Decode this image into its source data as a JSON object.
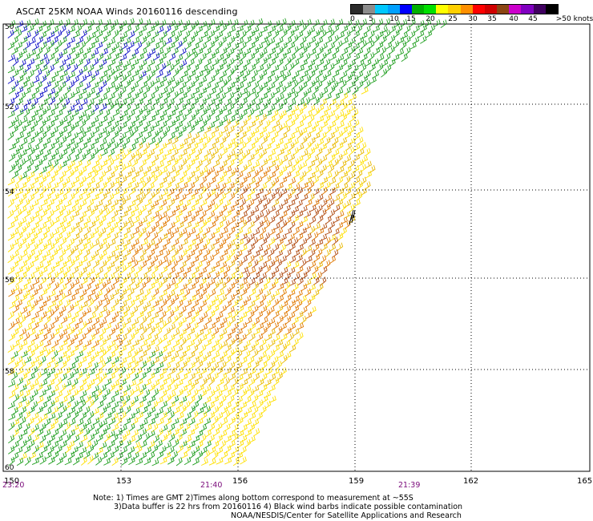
{
  "title": "ASCAT 25KM NOAA Winds 20160116 descending",
  "colorbar": {
    "colors": [
      "#2b2b2b",
      "#8c8c8c",
      "#00c8ff",
      "#00a0ff",
      "#0000ff",
      "#00b000",
      "#00e000",
      "#ffff00",
      "#ffd000",
      "#ff9000",
      "#ff0000",
      "#d00000",
      "#8b4513",
      "#cc00cc",
      "#8000c0",
      "#400060",
      "#000000"
    ],
    "labels": [
      "0",
      "5",
      "10",
      "15",
      "20",
      "25",
      "30",
      "35",
      "40",
      "45",
      ">50 knots"
    ]
  },
  "map": {
    "lat_labels": [
      "50",
      "52",
      "54",
      "56",
      "58",
      "60"
    ],
    "lon_labels": [
      "150",
      "153",
      "156",
      "159",
      "162",
      "165"
    ],
    "time_labels": [
      "23:20",
      "21:40",
      "21:39"
    ],
    "region": "descending swath",
    "wind_colors": {
      "green": "#1e9e1e",
      "blue": "#1010c8",
      "yellow": "#ffe000",
      "gold": "#e8b800",
      "orange": "#e07800",
      "brown": "#b04a10",
      "contam": "#000000"
    }
  },
  "note": {
    "line1": "Note: 1) Times are GMT 2)Times along bottom correspond to measurement at ~55S",
    "line2": "3)Data buffer is 22 hrs from 20160116 4) Black wind barbs indicate possible contamination",
    "line3": "NOAA/NESDIS/Center for Satellite Applications and Research"
  }
}
